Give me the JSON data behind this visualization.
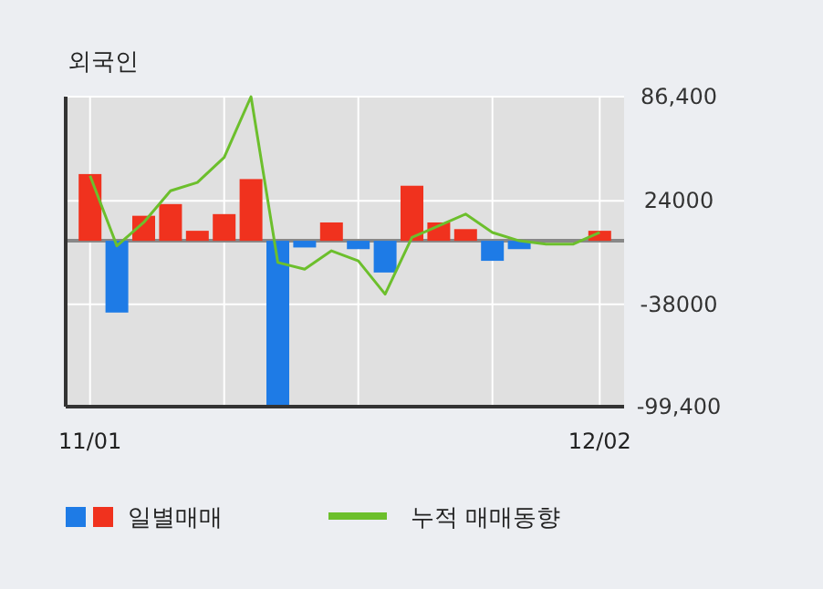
{
  "chart_data": {
    "type": "bar",
    "title": "외국인",
    "categories": [
      "11/01",
      null,
      null,
      null,
      null,
      null,
      null,
      null,
      null,
      null,
      null,
      null,
      null,
      null,
      null,
      null,
      null,
      null,
      null,
      "12/02"
    ],
    "series": [
      {
        "name": "일별매매",
        "colors": [
          "#f0321e",
          "#1e7be6",
          "#f0321e",
          "#f0321e",
          "#f0321e",
          "#f0321e",
          "#f0321e",
          "#1e7be6",
          "#1e7be6",
          "#f0321e",
          "#1e7be6",
          "#1e7be6",
          "#f0321e",
          "#f0321e",
          "#f0321e",
          "#1e7be6",
          "#1e7be6",
          "#f0321e",
          "#f0321e",
          "#f0321e"
        ],
        "values": [
          40000,
          -43000,
          15000,
          22000,
          6000,
          16000,
          37000,
          -99400,
          -4000,
          11000,
          -5000,
          -19000,
          33000,
          11000,
          7000,
          -12000,
          -5000,
          0,
          0,
          6000
        ]
      },
      {
        "name": "누적 매매동향",
        "type": "line",
        "color": "#6cbf2c",
        "values": [
          39000,
          -3000,
          11000,
          30000,
          35000,
          50000,
          86400,
          -13000,
          -17000,
          -6000,
          -12000,
          -32000,
          2000,
          9000,
          16000,
          5000,
          0,
          -2000,
          -2000,
          5000
        ]
      }
    ],
    "ylim": [
      -99400,
      86400
    ],
    "yticks": [
      {
        "value": 86400,
        "label": "86,400"
      },
      {
        "value": 24000,
        "label": "24000"
      },
      {
        "value": -38000,
        "label": "-38000"
      },
      {
        "value": -99400,
        "label": "-99,400"
      }
    ],
    "grid": true,
    "legend": "bottom",
    "marker": "none",
    "line_style": "solid"
  }
}
